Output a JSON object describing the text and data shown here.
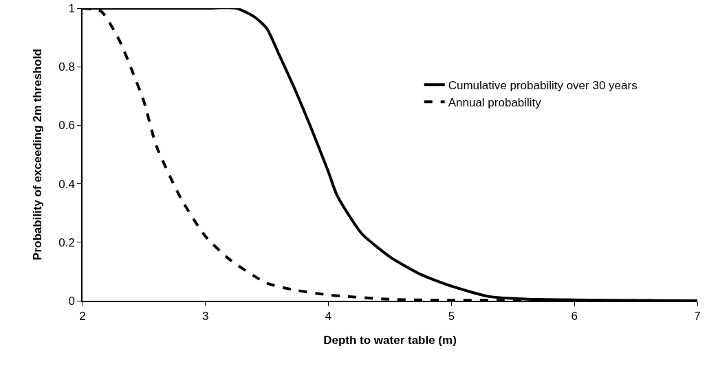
{
  "chart_data": {
    "type": "line",
    "xlabel": "Depth to water table (m)",
    "ylabel": "Probability of exceeding 2m threshold",
    "xlim": [
      2,
      7
    ],
    "ylim": [
      0,
      1
    ],
    "xticks": [
      2,
      3,
      4,
      5,
      6,
      7
    ],
    "yticks": [
      0,
      0.2,
      0.4,
      0.6,
      0.8,
      1
    ],
    "grid": false,
    "legend": "right",
    "marker": "none",
    "series": [
      {
        "name": "Cumulative probability over 30 years",
        "color": "#000000",
        "line_style": "solid",
        "x": [
          2,
          2.5,
          3,
          3.25,
          3.4,
          3.5,
          3.6,
          3.73,
          3.85,
          4,
          4.07,
          4.27,
          4.5,
          4.75,
          5,
          5.3,
          5.6,
          6,
          6.5,
          7
        ],
        "values": [
          1,
          1,
          1,
          1,
          0.97,
          0.93,
          0.84,
          0.72,
          0.6,
          0.44,
          0.36,
          0.23,
          0.15,
          0.09,
          0.05,
          0.015,
          0.006,
          0.003,
          0.001,
          0
        ]
      },
      {
        "name": "Annual probability",
        "color": "#000000",
        "line_style": "dashed",
        "x": [
          2,
          2.15,
          2.3,
          2.4,
          2.5,
          2.6,
          2.8,
          3,
          3.2,
          3.5,
          3.75,
          4,
          4.5,
          5,
          6,
          7
        ],
        "values": [
          1,
          0.99,
          0.89,
          0.79,
          0.68,
          0.53,
          0.35,
          0.22,
          0.14,
          0.06,
          0.035,
          0.02,
          0.005,
          0.002,
          0.001,
          0
        ]
      }
    ]
  }
}
